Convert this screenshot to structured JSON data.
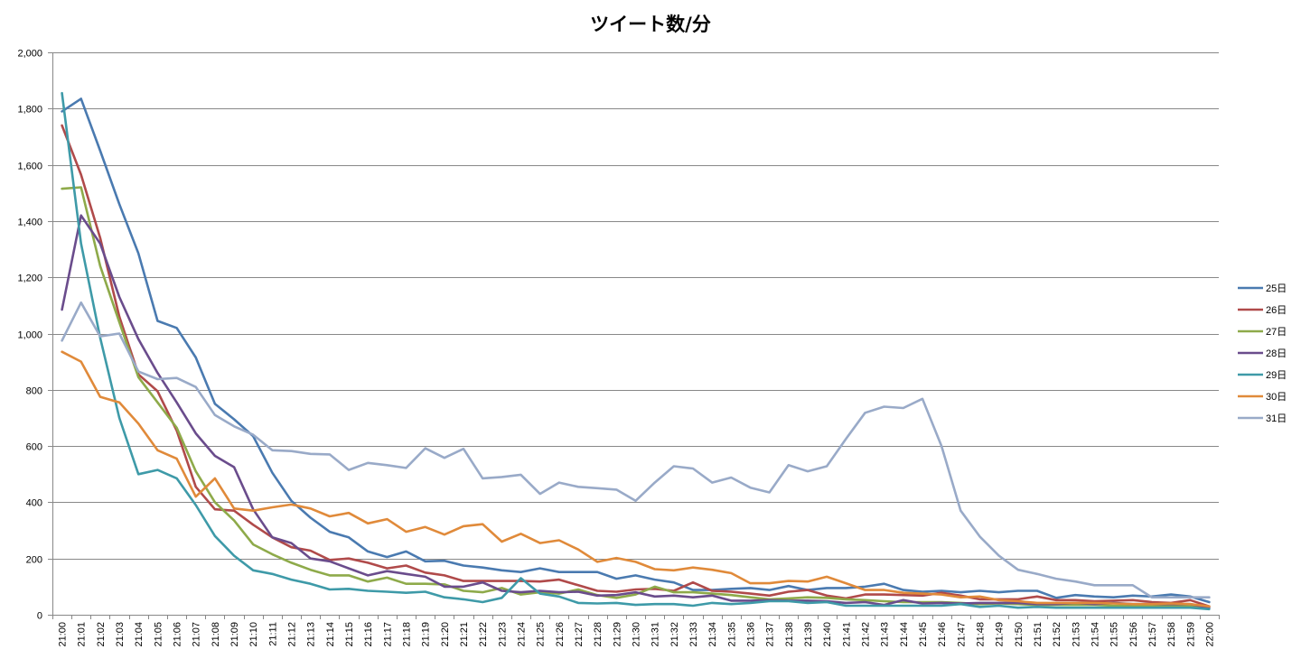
{
  "chart_data": {
    "type": "line",
    "title": "ツイート数/分",
    "xlabel": "",
    "ylabel": "",
    "ylim": [
      0,
      2000
    ],
    "yticks": [
      "0",
      "200",
      "400",
      "600",
      "800",
      "1,000",
      "1,200",
      "1,400",
      "1,600",
      "1,800",
      "2,000"
    ],
    "grid": true,
    "legend": "right",
    "x": [
      "21:00",
      "21:01",
      "21:02",
      "21:03",
      "21:04",
      "21:05",
      "21:06",
      "21:07",
      "21:08",
      "21:09",
      "21:10",
      "21:11",
      "21:12",
      "21:13",
      "21:14",
      "21:15",
      "21:16",
      "21:17",
      "21:18",
      "21:19",
      "21:20",
      "21:21",
      "21:22",
      "21:23",
      "21:24",
      "21:25",
      "21:26",
      "21:27",
      "21:28",
      "21:29",
      "21:30",
      "21:31",
      "21:32",
      "21:33",
      "21:34",
      "21:35",
      "21:36",
      "21:37",
      "21:38",
      "21:39",
      "21:40",
      "21:41",
      "21:42",
      "21:43",
      "21:44",
      "21:45",
      "21:46",
      "21:47",
      "21:48",
      "21:49",
      "21:50",
      "21:51",
      "21:52",
      "21:53",
      "21:54",
      "21:55",
      "21:56",
      "21:57",
      "21:58",
      "21:59",
      "22:00"
    ],
    "series": [
      {
        "name": "25日",
        "color": "#4a7ab0",
        "values": [
          1790,
          1835,
          1650,
          1460,
          1285,
          1045,
          1020,
          915,
          750,
          695,
          635,
          505,
          405,
          345,
          295,
          275,
          225,
          205,
          225,
          190,
          192,
          175,
          168,
          158,
          152,
          165,
          152,
          152,
          152,
          128,
          140,
          125,
          115,
          88,
          88,
          92,
          95,
          88,
          102,
          88,
          95,
          95,
          100,
          110,
          88,
          82,
          85,
          80,
          85,
          80,
          85,
          85,
          60,
          70,
          65,
          62,
          68,
          65,
          72,
          65,
          45
        ]
      },
      {
        "name": "26日",
        "color": "#b04a4a",
        "values": [
          1740,
          1565,
          1340,
          1060,
          855,
          795,
          655,
          455,
          375,
          370,
          320,
          275,
          240,
          228,
          195,
          200,
          185,
          165,
          175,
          150,
          140,
          120,
          120,
          120,
          120,
          118,
          125,
          105,
          85,
          82,
          90,
          92,
          85,
          115,
          85,
          82,
          75,
          68,
          82,
          88,
          68,
          58,
          72,
          72,
          70,
          68,
          78,
          68,
          55,
          55,
          55,
          65,
          52,
          52,
          48,
          50,
          52,
          45,
          42,
          52,
          30
        ]
      },
      {
        "name": "27日",
        "color": "#8eaa4a",
        "values": [
          1515,
          1520,
          1240,
          1040,
          845,
          755,
          665,
          510,
          400,
          335,
          250,
          215,
          185,
          160,
          140,
          140,
          118,
          132,
          110,
          110,
          108,
          85,
          80,
          95,
          72,
          80,
          75,
          90,
          70,
          60,
          72,
          100,
          80,
          80,
          75,
          70,
          62,
          55,
          58,
          62,
          60,
          55,
          52,
          48,
          45,
          45,
          45,
          42,
          38,
          40,
          38,
          35,
          35,
          35,
          35,
          32,
          32,
          32,
          32,
          30,
          28
        ]
      },
      {
        "name": "28日",
        "color": "#6a4c8c",
        "values": [
          1085,
          1420,
          1320,
          1130,
          980,
          860,
          755,
          645,
          565,
          525,
          375,
          275,
          255,
          200,
          190,
          165,
          140,
          155,
          145,
          135,
          100,
          100,
          115,
          85,
          80,
          85,
          80,
          82,
          68,
          70,
          80,
          65,
          68,
          62,
          68,
          50,
          50,
          52,
          50,
          50,
          48,
          42,
          45,
          35,
          52,
          40,
          42,
          40,
          42,
          42,
          42,
          38,
          38,
          42,
          38,
          42,
          38,
          38,
          38,
          38,
          25
        ]
      },
      {
        "name": "29日",
        "color": "#3e9aa8",
        "values": [
          1855,
          1320,
          985,
          700,
          500,
          515,
          485,
          390,
          280,
          210,
          158,
          145,
          125,
          110,
          90,
          92,
          85,
          82,
          78,
          82,
          62,
          55,
          45,
          60,
          130,
          75,
          65,
          42,
          40,
          42,
          35,
          38,
          38,
          32,
          42,
          38,
          42,
          48,
          48,
          42,
          45,
          32,
          32,
          32,
          32,
          32,
          32,
          38,
          28,
          32,
          25,
          28,
          25,
          25,
          25,
          25,
          25,
          25,
          25,
          25,
          20
        ]
      },
      {
        "name": "30日",
        "color": "#e08a3a",
        "values": [
          935,
          900,
          775,
          755,
          680,
          585,
          555,
          420,
          485,
          378,
          370,
          382,
          392,
          378,
          350,
          362,
          325,
          340,
          295,
          312,
          285,
          315,
          322,
          260,
          288,
          255,
          265,
          232,
          188,
          202,
          188,
          162,
          158,
          168,
          160,
          148,
          112,
          112,
          120,
          118,
          135,
          112,
          88,
          88,
          78,
          75,
          72,
          62,
          65,
          52,
          48,
          42,
          42,
          42,
          42,
          40,
          38,
          38,
          40,
          38,
          30
        ]
      },
      {
        "name": "31日",
        "color": "#99aac8",
        "values": [
          975,
          1110,
          990,
          1000,
          865,
          838,
          842,
          810,
          710,
          670,
          640,
          585,
          582,
          572,
          570,
          515,
          540,
          532,
          522,
          592,
          558,
          590,
          485,
          490,
          498,
          430,
          470,
          455,
          450,
          445,
          405,
          470,
          528,
          520,
          470,
          488,
          452,
          435,
          532,
          510,
          528,
          625,
          718,
          740,
          735,
          768,
          600,
          370,
          278,
          210,
          160,
          145,
          128,
          118,
          105,
          105,
          105,
          62,
          62,
          62,
          62
        ]
      }
    ]
  }
}
